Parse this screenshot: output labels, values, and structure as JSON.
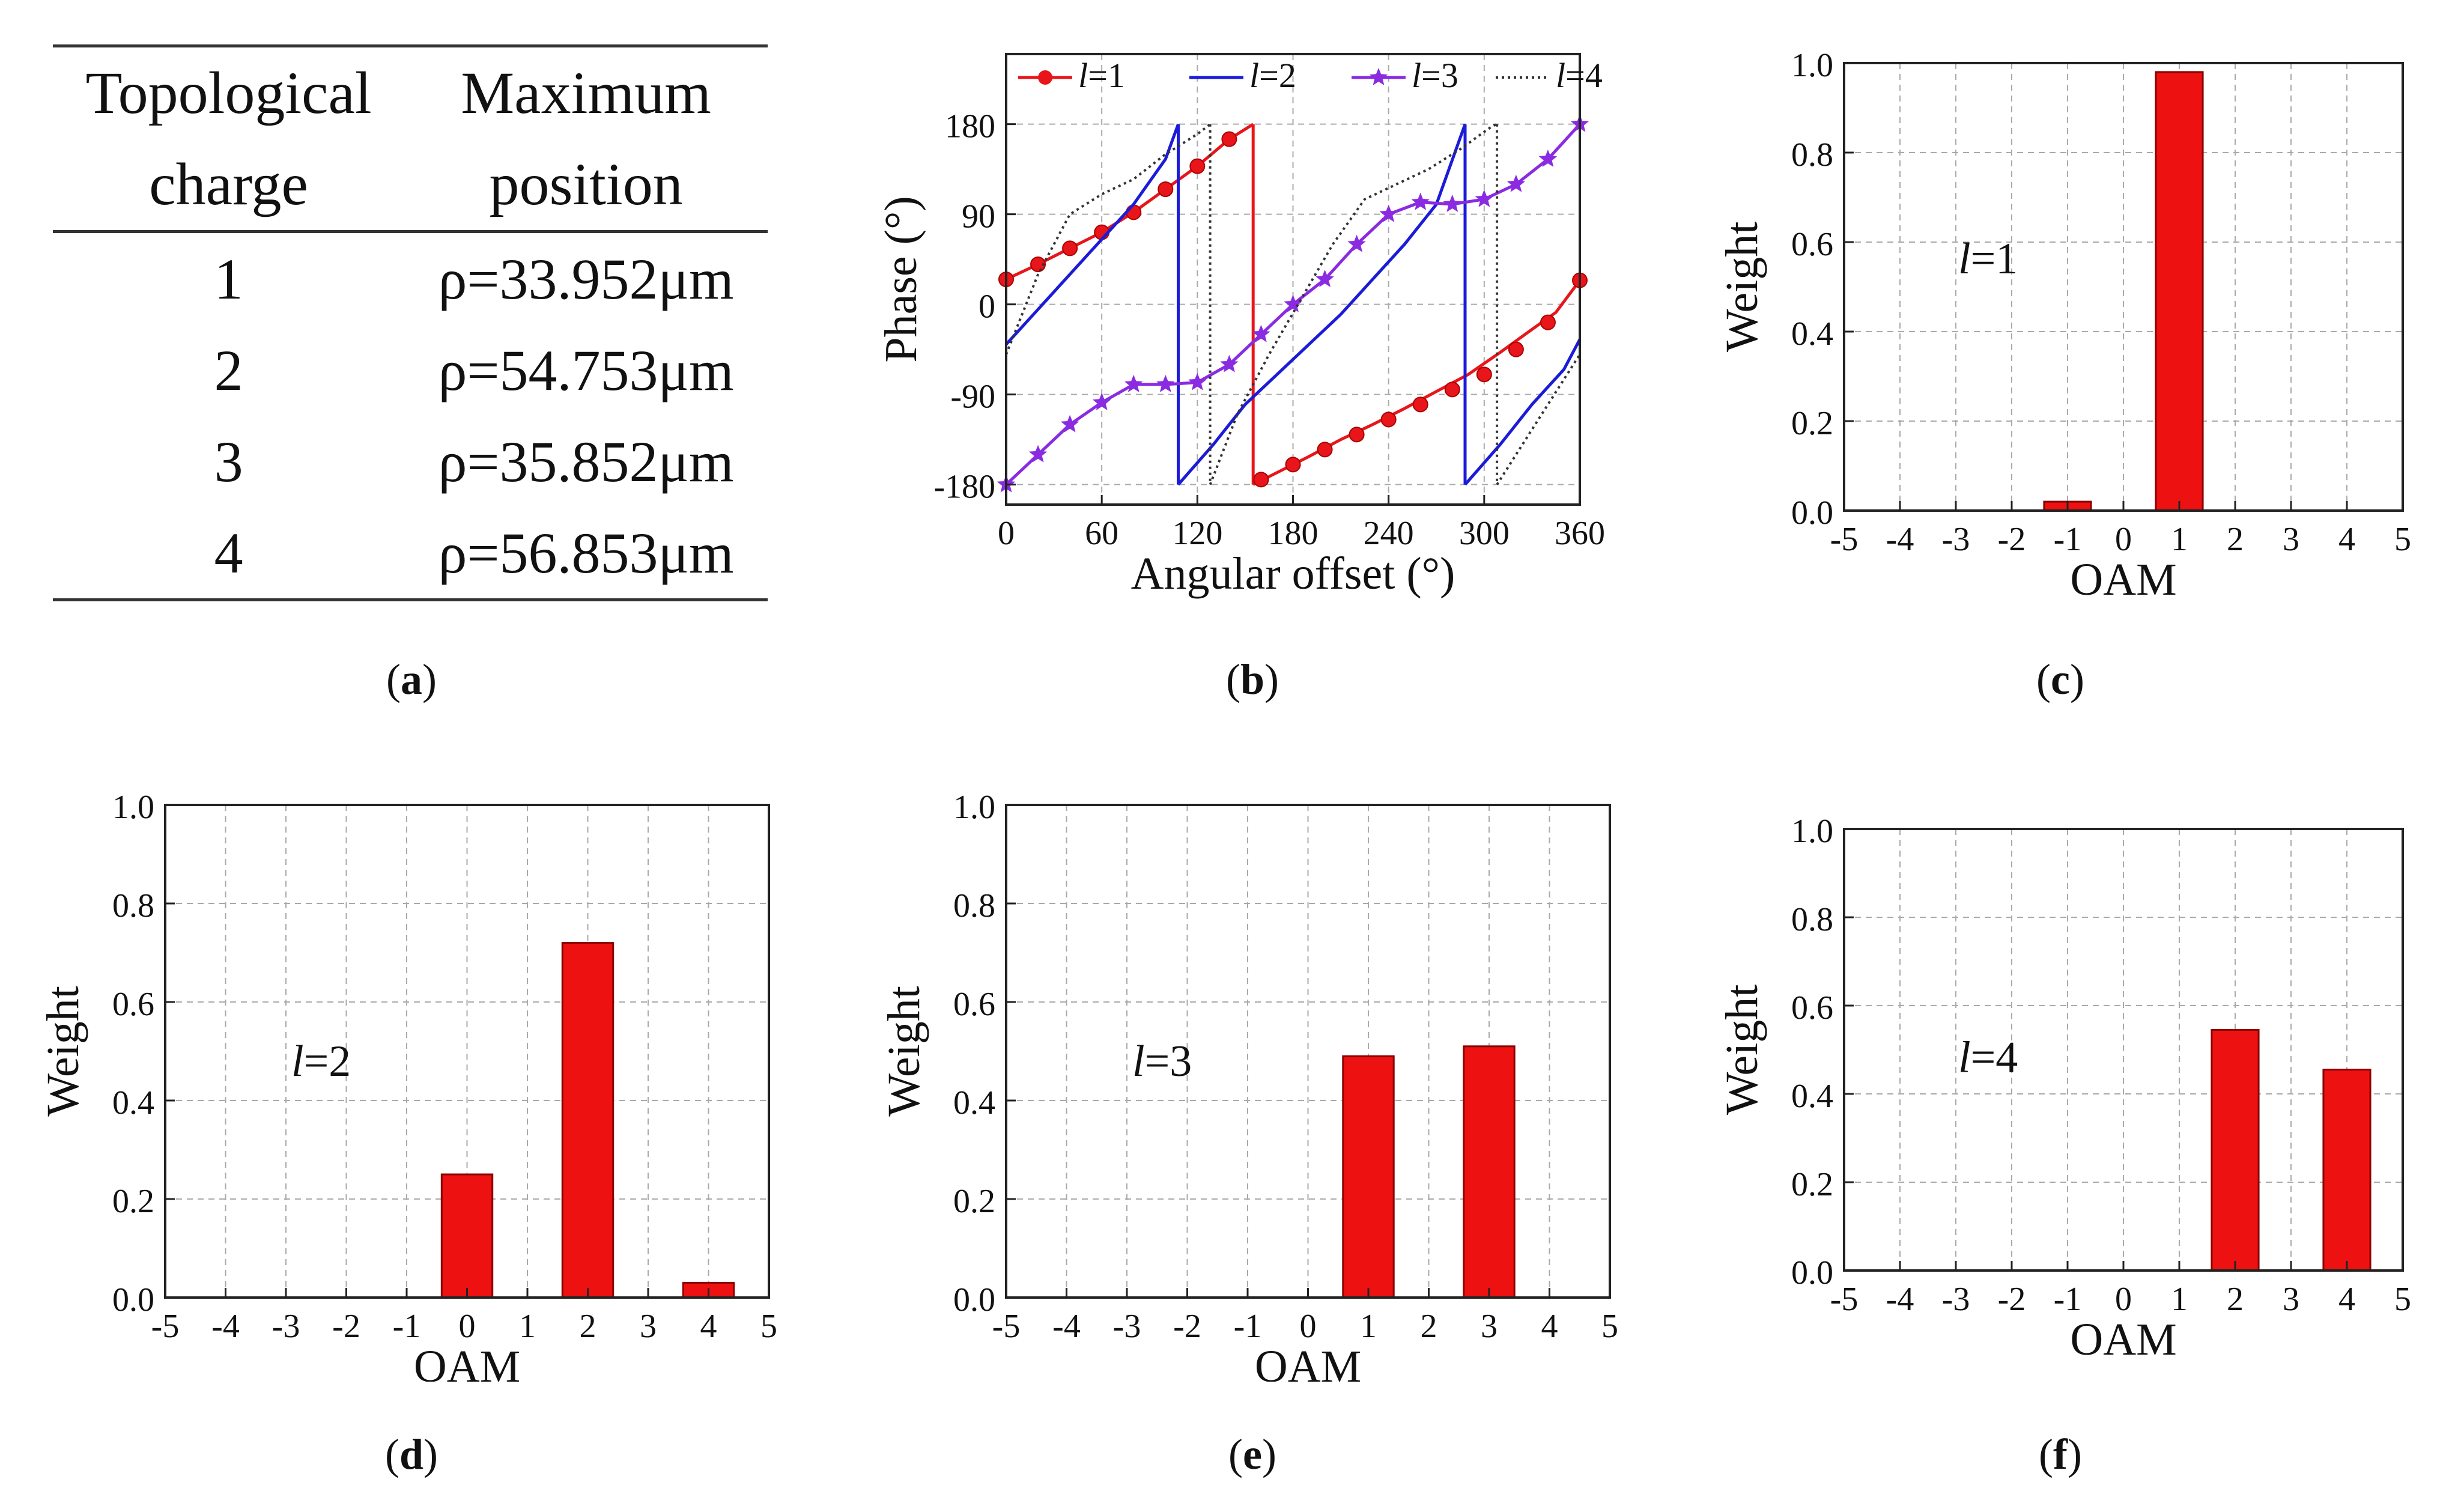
{
  "captions": {
    "a": "a",
    "b": "b",
    "c": "c",
    "d": "d",
    "e": "e",
    "f": "f"
  },
  "table_a": {
    "headers": [
      [
        "Topological",
        "charge"
      ],
      [
        "Maximum",
        "position"
      ]
    ],
    "rows": [
      [
        "1",
        "ρ=33.952μm"
      ],
      [
        "2",
        "ρ=54.753μm"
      ],
      [
        "3",
        "ρ=35.852μm"
      ],
      [
        "4",
        "ρ=56.853μm"
      ]
    ]
  },
  "chart_data": [
    {
      "id": "b",
      "type": "line",
      "xlabel": "Angular offset (°)",
      "ylabel": "Phase (°)",
      "xlim": [
        0,
        360
      ],
      "ylim": [
        -200,
        250
      ],
      "xticks": [
        0,
        60,
        120,
        180,
        240,
        300,
        360
      ],
      "yticks": [
        -180,
        -90,
        0,
        90,
        180
      ],
      "legend_position": "top",
      "series": [
        {
          "name": "l=1",
          "l": "l",
          "eq": "=1",
          "color": "#e8161b",
          "style": "solid-circle",
          "points": [
            [
              0,
              25
            ],
            [
              20,
              40
            ],
            [
              40,
              56
            ],
            [
              60,
              72
            ],
            [
              80,
              92
            ],
            [
              100,
              115
            ],
            [
              120,
              138
            ],
            [
              140,
              165
            ],
            [
              155,
              180
            ],
            [
              155,
              -180
            ],
            [
              170,
              -168
            ],
            [
              190,
              -152
            ],
            [
              210,
              -135
            ],
            [
              230,
              -120
            ],
            [
              250,
              -104
            ],
            [
              270,
              -87
            ],
            [
              290,
              -70
            ],
            [
              310,
              -48
            ],
            [
              330,
              -25
            ],
            [
              345,
              -8
            ],
            [
              360,
              24
            ]
          ],
          "markers": [
            [
              0,
              25
            ],
            [
              20,
              40
            ],
            [
              40,
              56
            ],
            [
              60,
              72
            ],
            [
              80,
              92
            ],
            [
              100,
              115
            ],
            [
              120,
              138
            ],
            [
              140,
              165
            ],
            [
              160,
              -175
            ],
            [
              180,
              -160
            ],
            [
              200,
              -145
            ],
            [
              220,
              -130
            ],
            [
              240,
              -115
            ],
            [
              260,
              -100
            ],
            [
              280,
              -85
            ],
            [
              300,
              -70
            ],
            [
              320,
              -45
            ],
            [
              340,
              -18
            ],
            [
              360,
              24
            ]
          ]
        },
        {
          "name": "l=2",
          "l": "l",
          "eq": "=2",
          "color": "#1b1bd8",
          "style": "solid",
          "points": [
            [
              0,
              -40
            ],
            [
              20,
              -5
            ],
            [
              40,
              30
            ],
            [
              60,
              65
            ],
            [
              80,
              100
            ],
            [
              100,
              145
            ],
            [
              108,
              180
            ],
            [
              108,
              -180
            ],
            [
              130,
              -140
            ],
            [
              150,
              -100
            ],
            [
              170,
              -70
            ],
            [
              190,
              -40
            ],
            [
              210,
              -10
            ],
            [
              230,
              25
            ],
            [
              250,
              60
            ],
            [
              270,
              100
            ],
            [
              288,
              180
            ],
            [
              288,
              -180
            ],
            [
              310,
              -140
            ],
            [
              330,
              -100
            ],
            [
              350,
              -65
            ],
            [
              360,
              -35
            ]
          ]
        },
        {
          "name": "l=3",
          "l": "l",
          "eq": "=3",
          "color": "#8a2be2",
          "style": "solid-star",
          "points": [
            [
              0,
              -180
            ],
            [
              20,
              -150
            ],
            [
              40,
              -120
            ],
            [
              60,
              -98
            ],
            [
              80,
              -80
            ],
            [
              100,
              -80
            ],
            [
              120,
              -78
            ],
            [
              140,
              -60
            ],
            [
              160,
              -30
            ],
            [
              180,
              0
            ],
            [
              200,
              25
            ],
            [
              220,
              60
            ],
            [
              240,
              90
            ],
            [
              260,
              102
            ],
            [
              280,
              100
            ],
            [
              300,
              105
            ],
            [
              320,
              120
            ],
            [
              340,
              145
            ],
            [
              360,
              180
            ]
          ],
          "markers": [
            [
              0,
              -180
            ],
            [
              20,
              -150
            ],
            [
              40,
              -120
            ],
            [
              60,
              -98
            ],
            [
              80,
              -80
            ],
            [
              100,
              -80
            ],
            [
              120,
              -78
            ],
            [
              140,
              -60
            ],
            [
              160,
              -30
            ],
            [
              180,
              0
            ],
            [
              200,
              25
            ],
            [
              220,
              60
            ],
            [
              240,
              90
            ],
            [
              260,
              102
            ],
            [
              280,
              100
            ],
            [
              300,
              105
            ],
            [
              320,
              120
            ],
            [
              340,
              145
            ],
            [
              360,
              180
            ]
          ]
        },
        {
          "name": "l=4",
          "l": "l",
          "eq": "=4",
          "color": "#333333",
          "style": "dotted",
          "points": [
            [
              0,
              -50
            ],
            [
              20,
              30
            ],
            [
              40,
              90
            ],
            [
              60,
              110
            ],
            [
              80,
              125
            ],
            [
              100,
              150
            ],
            [
              120,
              170
            ],
            [
              128,
              180
            ],
            [
              128,
              -180
            ],
            [
              145,
              -110
            ],
            [
              165,
              -50
            ],
            [
              185,
              5
            ],
            [
              205,
              60
            ],
            [
              225,
              105
            ],
            [
              245,
              120
            ],
            [
              265,
              135
            ],
            [
              285,
              155
            ],
            [
              305,
              178
            ],
            [
              308,
              180
            ],
            [
              308,
              -180
            ],
            [
              330,
              -125
            ],
            [
              350,
              -75
            ],
            [
              360,
              -50
            ]
          ]
        }
      ]
    },
    {
      "id": "c",
      "type": "bar",
      "annotation_l": "l",
      "annotation_eq": "=1",
      "xlabel": "OAM",
      "ylabel": "Weight",
      "xlim": [
        -5,
        5
      ],
      "ylim": [
        0,
        1.0
      ],
      "xticks": [
        -5,
        -4,
        -3,
        -2,
        -1,
        0,
        1,
        2,
        3,
        4,
        5
      ],
      "yticks": [
        0.0,
        0.2,
        0.4,
        0.6,
        0.8,
        1.0
      ],
      "bars": [
        {
          "x": -1,
          "value": 0.02
        },
        {
          "x": 1,
          "value": 0.98
        }
      ]
    },
    {
      "id": "d",
      "type": "bar",
      "annotation_l": "l",
      "annotation_eq": "=2",
      "xlabel": "OAM",
      "ylabel": "Weight",
      "xlim": [
        -5,
        5
      ],
      "ylim": [
        0,
        1.0
      ],
      "xticks": [
        -5,
        -4,
        -3,
        -2,
        -1,
        0,
        1,
        2,
        3,
        4,
        5
      ],
      "yticks": [
        0.0,
        0.2,
        0.4,
        0.6,
        0.8,
        1.0
      ],
      "bars": [
        {
          "x": 0,
          "value": 0.25
        },
        {
          "x": 2,
          "value": 0.72
        },
        {
          "x": 4,
          "value": 0.03
        }
      ]
    },
    {
      "id": "e",
      "type": "bar",
      "annotation_l": "l",
      "annotation_eq": "=3",
      "xlabel": "OAM",
      "ylabel": "Weight",
      "xlim": [
        -5,
        5
      ],
      "ylim": [
        0,
        1.0
      ],
      "xticks": [
        -5,
        -4,
        -3,
        -2,
        -1,
        0,
        1,
        2,
        3,
        4,
        5
      ],
      "yticks": [
        0.0,
        0.2,
        0.4,
        0.6,
        0.8,
        1.0
      ],
      "bars": [
        {
          "x": 1,
          "value": 0.49
        },
        {
          "x": 3,
          "value": 0.51
        }
      ]
    },
    {
      "id": "f",
      "type": "bar",
      "annotation_l": "l",
      "annotation_eq": "=4",
      "xlabel": "OAM",
      "ylabel": "Weight",
      "xlim": [
        -5,
        5
      ],
      "ylim": [
        0,
        1.0
      ],
      "xticks": [
        -5,
        -4,
        -3,
        -2,
        -1,
        0,
        1,
        2,
        3,
        4,
        5
      ],
      "yticks": [
        0.0,
        0.2,
        0.4,
        0.6,
        0.8,
        1.0
      ],
      "bars": [
        {
          "x": 2,
          "value": 0.545
        },
        {
          "x": 4,
          "value": 0.455
        }
      ]
    }
  ],
  "colors": {
    "bar_fill": "#ee1111",
    "bar_stroke": "#8b0000",
    "grid": "#aaaaaa",
    "axis": "#222222"
  }
}
